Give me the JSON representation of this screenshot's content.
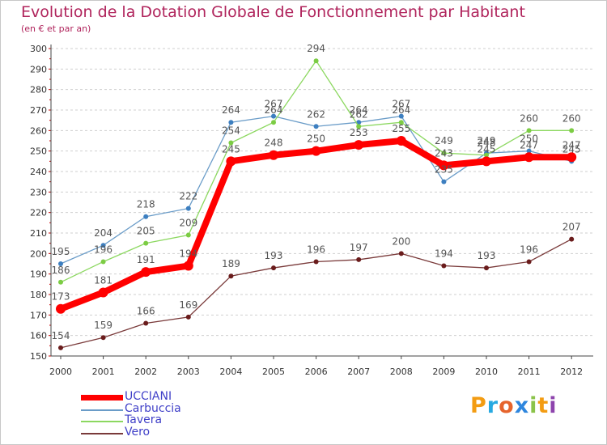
{
  "title": "Evolution de la Dotation Globale de Fonctionnement par Habitant",
  "subtitle": "(en € et par an)",
  "logo": {
    "letters": [
      "P",
      "r",
      "o",
      "x",
      "i",
      "t",
      "i"
    ],
    "colors": [
      "#f39c12",
      "#27a9e1",
      "#e6642c",
      "#2e86de",
      "#8bc34a",
      "#f39c12",
      "#8e44ad"
    ]
  },
  "chart_data": {
    "type": "line",
    "title": "Evolution de la Dotation Globale de Fonctionnement par Habitant",
    "subtitle": "(en € et par an)",
    "xlabel": "",
    "ylabel": "",
    "ylim": [
      150,
      300
    ],
    "yticks": [
      150,
      160,
      170,
      180,
      190,
      200,
      210,
      220,
      230,
      240,
      250,
      260,
      270,
      280,
      290,
      300
    ],
    "grid": "horizontal dashed",
    "legend_position": "bottom-left",
    "categories": [
      "2000",
      "2001",
      "2002",
      "2003",
      "2004",
      "2005",
      "2006",
      "2007",
      "2008",
      "2009",
      "2010",
      "2011",
      "2012"
    ],
    "series": [
      {
        "name": "UCCIANI",
        "color": "#ff0000",
        "thick": true,
        "values": [
          173,
          181,
          191,
          194,
          245,
          248,
          250,
          253,
          255,
          243,
          245,
          247,
          247
        ]
      },
      {
        "name": "Carbuccia",
        "color": "#6a9cc8",
        "marker": "#3d7fc0",
        "thick": false,
        "values": [
          195,
          204,
          218,
          222,
          264,
          267,
          262,
          264,
          267,
          235,
          249,
          250,
          245
        ]
      },
      {
        "name": "Tavera",
        "color": "#8cd860",
        "marker": "#7ccc44",
        "thick": false,
        "values": [
          186,
          196,
          205,
          209,
          254,
          264,
          294,
          262,
          264,
          249,
          248,
          260,
          260
        ]
      },
      {
        "name": "Vero",
        "color": "#7a3a3a",
        "marker": "#6a1c1c",
        "thick": false,
        "values": [
          154,
          159,
          166,
          169,
          189,
          193,
          196,
          197,
          200,
          194,
          193,
          196,
          207
        ]
      }
    ]
  }
}
